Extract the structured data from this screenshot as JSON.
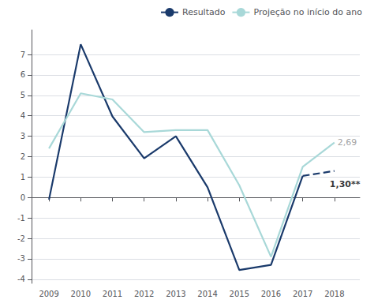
{
  "chart_data": {
    "type": "line",
    "x": [
      2009,
      2010,
      2011,
      2012,
      2013,
      2014,
      2015,
      2016,
      2017,
      2018
    ],
    "series": [
      {
        "name": "Resultado",
        "color": "#1a3a6b",
        "line_style": "solid",
        "values": [
          -0.1,
          7.5,
          3.97,
          1.92,
          3.0,
          0.5,
          -3.55,
          -3.3,
          1.06,
          null
        ]
      },
      {
        "color": "#1a3a6b",
        "line_style": "dashed",
        "values": [
          null,
          null,
          null,
          null,
          null,
          null,
          null,
          null,
          1.06,
          1.3
        ]
      },
      {
        "name": "Projeção no início do ano",
        "color": "#a8d8d8",
        "line_style": "solid",
        "values": [
          2.4,
          5.1,
          4.8,
          3.2,
          3.3,
          3.3,
          0.6,
          -2.9,
          1.5,
          2.69
        ]
      }
    ],
    "xlim": [
      2008.45,
      2018.8
    ],
    "xticks": [
      2009,
      2010,
      2011,
      2012,
      2013,
      2014,
      2015,
      2016,
      2017,
      2018
    ],
    "ylim": [
      -4.2,
      8.2
    ],
    "yticks": [
      -4,
      -3,
      -2,
      -1,
      0,
      1,
      2,
      3,
      4,
      5,
      6,
      7
    ],
    "grid": true,
    "legend": "upper right",
    "annotations": [
      {
        "text": "2,69",
        "x": 2018,
        "y": 2.69,
        "color": "#888888"
      },
      {
        "text": "1,30**",
        "x": 2017.85,
        "y": 0.85,
        "color": "#000000"
      }
    ]
  }
}
